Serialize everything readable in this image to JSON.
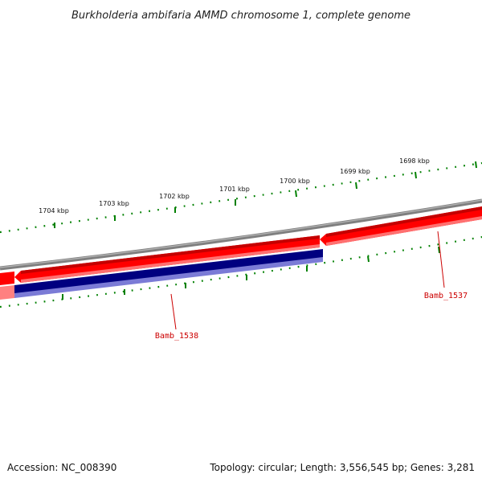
{
  "title": "Burkholderia ambifaria AMMD chromosome 1, complete genome",
  "footer": {
    "accession": "Accession: NC_008390",
    "summary": "Topology: circular; Length: 3,556,545 bp; Genes: 3,281"
  },
  "scale_labels": [
    "1704 kbp",
    "1703 kbp",
    "1702 kbp",
    "1701 kbp",
    "1700 kbp",
    "1699 kbp",
    "1698 kbp"
  ],
  "genes": [
    {
      "name": "Bamb_1537",
      "strand": "reverse",
      "color": "#ff0000"
    },
    {
      "name": "Bamb_1538",
      "strand": "reverse",
      "color": "#000080"
    }
  ],
  "colors": {
    "backbone": "#808080",
    "tick": "#008000",
    "gene_label": "#cc0000",
    "leader": "#cc0000"
  }
}
